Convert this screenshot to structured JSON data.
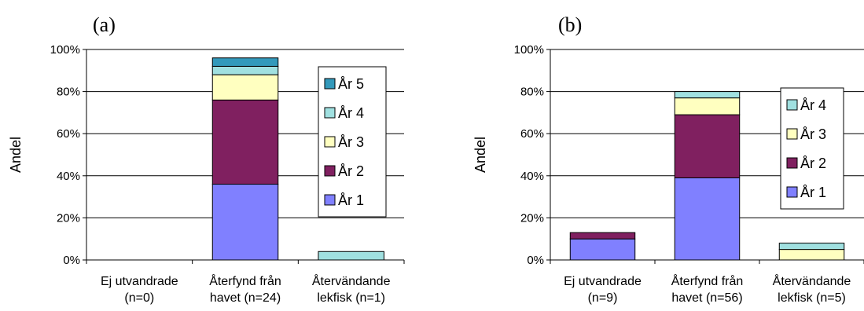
{
  "chart_data": [
    {
      "type": "bar",
      "stacked": true,
      "panel_label": "(a)",
      "ylabel": "Andel",
      "ylim": [
        0,
        100
      ],
      "yticks": [
        "0%",
        "20%",
        "40%",
        "60%",
        "80%",
        "100%"
      ],
      "grid": true,
      "legend_position": "right",
      "categories": [
        [
          "Ej utvandrade",
          "(n=0)"
        ],
        [
          "Återfynd från",
          "havet (n=24)"
        ],
        [
          "Återvändande",
          "lekfisk (n=1)"
        ]
      ],
      "series": [
        {
          "name": "År 1",
          "color": "#8080ff",
          "values": [
            0,
            36,
            0
          ]
        },
        {
          "name": "År 2",
          "color": "#802060",
          "values": [
            0,
            40,
            0
          ]
        },
        {
          "name": "År 3",
          "color": "#ffffc0",
          "values": [
            0,
            12,
            0
          ]
        },
        {
          "name": "År 4",
          "color": "#a0e0e0",
          "values": [
            0,
            4,
            4
          ]
        },
        {
          "name": "År 5",
          "color": "#3399bb",
          "values": [
            0,
            4,
            0
          ]
        }
      ]
    },
    {
      "type": "bar",
      "stacked": true,
      "panel_label": "(b)",
      "ylabel": "Andel",
      "ylim": [
        0,
        100
      ],
      "yticks": [
        "0%",
        "20%",
        "40%",
        "60%",
        "80%",
        "100%"
      ],
      "grid": true,
      "legend_position": "right",
      "categories": [
        [
          "Ej utvandrade",
          "(n=9)"
        ],
        [
          "Återfynd från",
          "havet (n=56)"
        ],
        [
          "Återvändande",
          "lekfisk (n=5)"
        ]
      ],
      "series": [
        {
          "name": "År 1",
          "color": "#8080ff",
          "values": [
            10,
            39,
            0
          ]
        },
        {
          "name": "År 2",
          "color": "#802060",
          "values": [
            3,
            30,
            0
          ]
        },
        {
          "name": "År 3",
          "color": "#ffffc0",
          "values": [
            0,
            8,
            5
          ]
        },
        {
          "name": "År 4",
          "color": "#a0e0e0",
          "values": [
            0,
            3,
            3
          ]
        }
      ]
    }
  ]
}
